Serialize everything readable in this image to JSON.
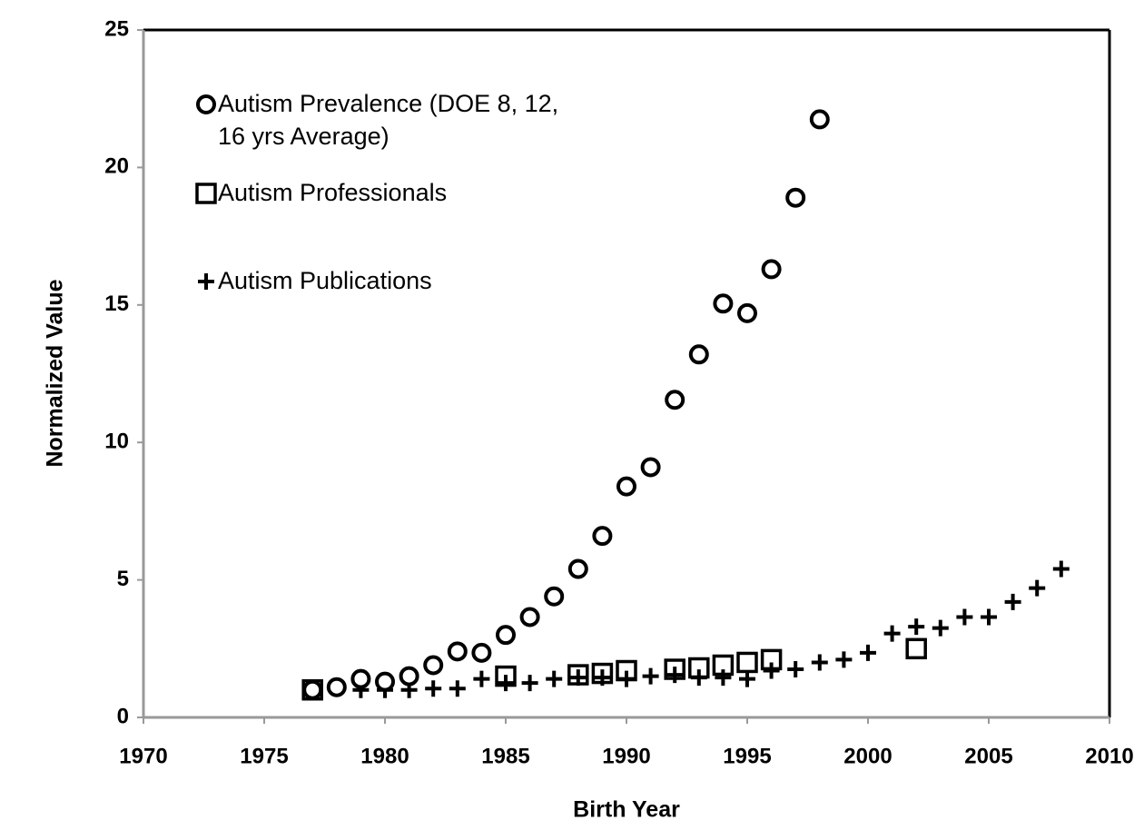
{
  "chart_data": {
    "type": "scatter",
    "xlabel": "Birth Year",
    "ylabel": "Normalized Value",
    "xlim": [
      1970,
      2010
    ],
    "xticks": [
      1970,
      1975,
      1980,
      1985,
      1990,
      1995,
      2000,
      2005,
      2010
    ],
    "ylim": [
      0,
      25
    ],
    "yticks": [
      0,
      5,
      10,
      15,
      20,
      25
    ],
    "grid": false,
    "legend": "upper left",
    "series": [
      {
        "name": "Autism Prevalence (DOE 8, 12, 16 yrs Average)",
        "color": "#000000",
        "marker": "circle",
        "x": [
          1977,
          1978,
          1979,
          1980,
          1981,
          1982,
          1983,
          1984,
          1985,
          1986,
          1987,
          1988,
          1989,
          1990,
          1991,
          1992,
          1993,
          1994,
          1995,
          1996,
          1997,
          1998
        ],
        "values": [
          1.0,
          1.1,
          1.4,
          1.3,
          1.5,
          1.9,
          2.4,
          2.35,
          3.0,
          3.65,
          4.4,
          5.4,
          6.6,
          8.4,
          9.1,
          11.55,
          13.2,
          15.05,
          14.7,
          16.3,
          18.9,
          21.75
        ]
      },
      {
        "name": "Autism Professionals",
        "color": "#000000",
        "marker": "square",
        "x": [
          1977,
          1985,
          1988,
          1989,
          1990,
          1992,
          1993,
          1994,
          1995,
          1996,
          2002
        ],
        "values": [
          1.0,
          1.5,
          1.55,
          1.6,
          1.7,
          1.75,
          1.8,
          1.9,
          2.0,
          2.1,
          2.5
        ]
      },
      {
        "name": "Autism Publications",
        "color": "#000000",
        "marker": "plus",
        "x": [
          1977,
          1978,
          1979,
          1980,
          1981,
          1982,
          1983,
          1984,
          1985,
          1986,
          1987,
          1988,
          1989,
          1990,
          1991,
          1992,
          1993,
          1994,
          1995,
          1996,
          1997,
          1998,
          1999,
          2000,
          2001,
          2002,
          2003,
          2004,
          2005,
          2006,
          2007,
          2008
        ],
        "values": [
          1.0,
          1.1,
          1.0,
          1.0,
          1.0,
          1.05,
          1.05,
          1.4,
          1.25,
          1.25,
          1.4,
          1.45,
          1.45,
          1.4,
          1.5,
          1.55,
          1.45,
          1.45,
          1.4,
          1.7,
          1.75,
          2.0,
          2.1,
          2.35,
          3.05,
          3.3,
          3.25,
          3.65,
          3.65,
          4.2,
          4.7,
          5.4
        ]
      }
    ]
  }
}
